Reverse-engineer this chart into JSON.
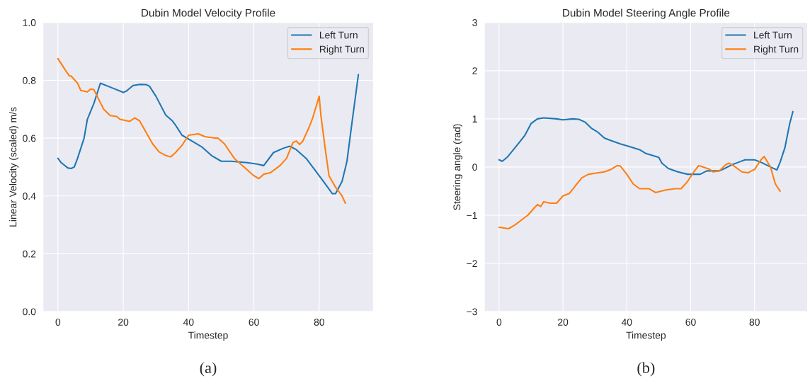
{
  "chart_data": [
    {
      "type": "line",
      "title": "Dubin Model Velocity Profile",
      "xlabel": "Timestep",
      "ylabel": "Linear Velocity (scaled) m/s",
      "xlim": [
        -4.6,
        96.6
      ],
      "xticks": [
        0,
        20,
        40,
        60,
        80
      ],
      "ylim": [
        0,
        1
      ],
      "yticks": [
        {
          "value": 0,
          "label": "0.0"
        },
        0.2,
        0.4,
        0.6,
        0.8,
        {
          "value": 1,
          "label": "1.0"
        }
      ],
      "grid": true,
      "legend": "top right",
      "annotations": [
        "(a)"
      ],
      "series": [
        {
          "name": "Left Turn",
          "color": "#1f77b4",
          "x": [
            0,
            1,
            3,
            4,
            5,
            6,
            8,
            9,
            11,
            13,
            17,
            20,
            21,
            23,
            25,
            27,
            28,
            30,
            33,
            35,
            36,
            38,
            41,
            44,
            47,
            50,
            53,
            58,
            61,
            63,
            66,
            69,
            71,
            73,
            76,
            78,
            81,
            84,
            85,
            87,
            88.5,
            90,
            92
          ],
          "values": [
            0.53,
            0.515,
            0.497,
            0.495,
            0.5,
            0.53,
            0.6,
            0.665,
            0.72,
            0.79,
            0.772,
            0.758,
            0.763,
            0.782,
            0.786,
            0.785,
            0.78,
            0.745,
            0.68,
            0.66,
            0.645,
            0.61,
            0.59,
            0.57,
            0.54,
            0.52,
            0.52,
            0.515,
            0.51,
            0.505,
            0.55,
            0.565,
            0.572,
            0.56,
            0.53,
            0.5,
            0.455,
            0.408,
            0.408,
            0.45,
            0.52,
            0.65,
            0.82
          ]
        },
        {
          "name": "Right Turn",
          "color": "#ff7f0e",
          "x": [
            0,
            2,
            3.5,
            4,
            6,
            7,
            9,
            10,
            11,
            12,
            14,
            16,
            18,
            19,
            22,
            23.5,
            25,
            27,
            29,
            31,
            33,
            34.5,
            36,
            38,
            40,
            43,
            45,
            48,
            49,
            51,
            54,
            57,
            60,
            61.5,
            63,
            65,
            68,
            70,
            72,
            73,
            74,
            75,
            77,
            78,
            80,
            80.5,
            82,
            83,
            85,
            87,
            88
          ],
          "values": [
            0.875,
            0.84,
            0.815,
            0.815,
            0.79,
            0.765,
            0.76,
            0.77,
            0.768,
            0.745,
            0.7,
            0.678,
            0.675,
            0.665,
            0.658,
            0.67,
            0.66,
            0.62,
            0.58,
            0.552,
            0.54,
            0.535,
            0.55,
            0.575,
            0.61,
            0.615,
            0.605,
            0.6,
            0.6,
            0.58,
            0.53,
            0.5,
            0.47,
            0.46,
            0.475,
            0.48,
            0.505,
            0.53,
            0.585,
            0.59,
            0.578,
            0.59,
            0.64,
            0.67,
            0.745,
            0.68,
            0.55,
            0.47,
            0.43,
            0.4,
            0.375
          ]
        }
      ]
    },
    {
      "type": "line",
      "title": "Dubin Model Steering Angle Profile",
      "xlabel": "Timestep",
      "ylabel": "Steering angle (rad)",
      "xlim": [
        -4.6,
        96.6
      ],
      "xticks": [
        0,
        20,
        40,
        60,
        80
      ],
      "ylim": [
        -3,
        3
      ],
      "yticks": [
        {
          "value": -3,
          "label": "−3"
        },
        {
          "value": -2,
          "label": "−2"
        },
        {
          "value": -1,
          "label": "−1"
        },
        0,
        1,
        2,
        3
      ],
      "grid": true,
      "legend": "top right",
      "annotations": [
        "(b)"
      ],
      "series": [
        {
          "name": "Left Turn",
          "color": "#1f77b4",
          "x": [
            0,
            1,
            2.5,
            5,
            8,
            10,
            12,
            14,
            18,
            20,
            23,
            25,
            27,
            29,
            31,
            33,
            35,
            38,
            41,
            44,
            46,
            50,
            51,
            53,
            56,
            59,
            63,
            65,
            69,
            70,
            73,
            75,
            77,
            80,
            82,
            85,
            87,
            88,
            89.5,
            91,
            92
          ],
          "values": [
            0.15,
            0.12,
            0.2,
            0.4,
            0.65,
            0.9,
            1.0,
            1.02,
            1.0,
            0.98,
            1.0,
            0.99,
            0.93,
            0.8,
            0.72,
            0.6,
            0.55,
            0.48,
            0.42,
            0.36,
            0.28,
            0.2,
            0.08,
            -0.03,
            -0.1,
            -0.15,
            -0.15,
            -0.08,
            -0.08,
            -0.05,
            0.05,
            0.1,
            0.15,
            0.15,
            0.1,
            0.0,
            -0.06,
            0.1,
            0.4,
            0.9,
            1.15
          ]
        },
        {
          "name": "Right Turn",
          "color": "#ff7f0e",
          "x": [
            0,
            3,
            5,
            7,
            9,
            11,
            12,
            13,
            14,
            16,
            18,
            20,
            22,
            24,
            26,
            28,
            30,
            33,
            35,
            37,
            38,
            40,
            42,
            44,
            47,
            49,
            52,
            55,
            57,
            59,
            61,
            62.5,
            63,
            66,
            67,
            69,
            71,
            72,
            74,
            76,
            78,
            79,
            80,
            82,
            83,
            85,
            86.5,
            88
          ],
          "values": [
            -1.25,
            -1.28,
            -1.2,
            -1.1,
            -1.0,
            -0.85,
            -0.78,
            -0.82,
            -0.72,
            -0.75,
            -0.75,
            -0.6,
            -0.55,
            -0.38,
            -0.22,
            -0.15,
            -0.13,
            -0.1,
            -0.05,
            0.03,
            0.02,
            -0.15,
            -0.35,
            -0.45,
            -0.45,
            -0.53,
            -0.48,
            -0.45,
            -0.45,
            -0.3,
            -0.1,
            0.03,
            0.02,
            -0.05,
            -0.1,
            -0.08,
            0.05,
            0.08,
            0.0,
            -0.1,
            -0.12,
            -0.08,
            -0.05,
            0.15,
            0.22,
            0.0,
            -0.35,
            -0.5
          ]
        }
      ]
    }
  ]
}
